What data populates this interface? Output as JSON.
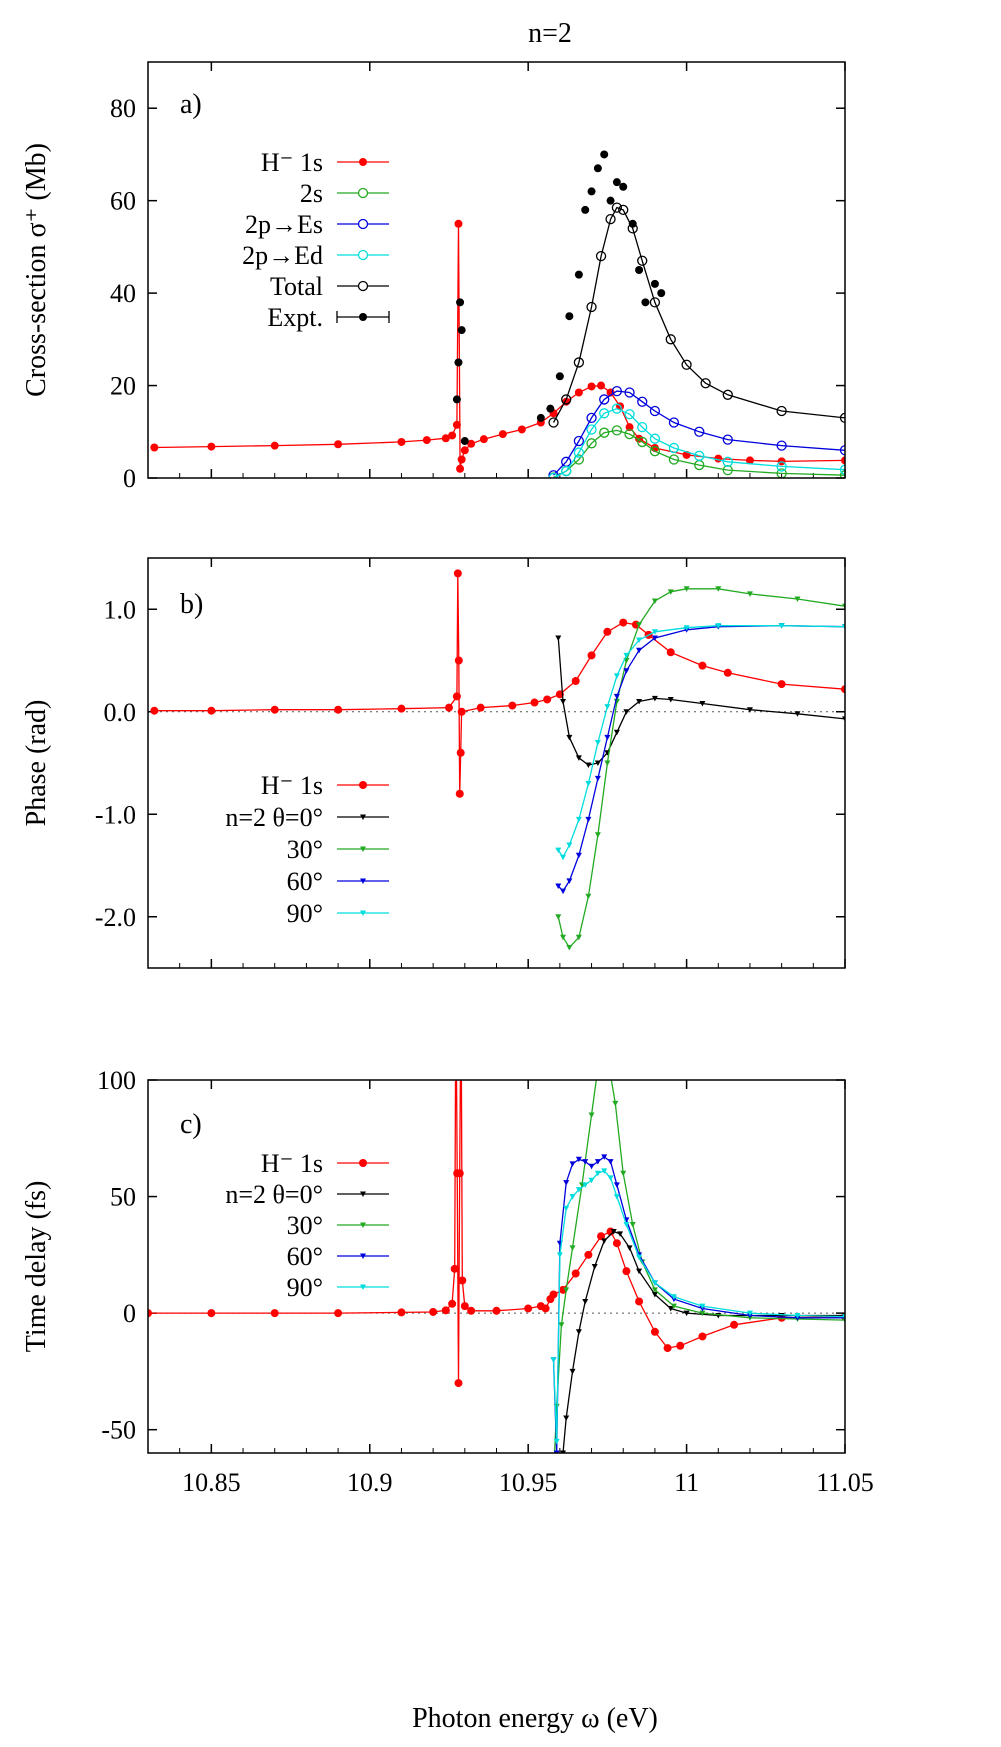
{
  "figure_title": "n=2",
  "x_axis": {
    "label": "Photon energy ω (eV)",
    "range": [
      10.83,
      11.05
    ],
    "ticks": [
      10.85,
      10.9,
      10.95,
      11,
      11.05
    ],
    "tick_labels": [
      "10.85",
      "10.9",
      "10.95",
      "11",
      "11.05"
    ]
  },
  "chart_data": [
    {
      "type": "line",
      "panel_label": "a)",
      "ylabel": "Cross-section σ⁺ (Mb)",
      "ylim": [
        0,
        90
      ],
      "yticks": [
        0,
        20,
        40,
        60,
        80
      ],
      "ytick_labels": [
        "0",
        "20",
        "40",
        "60",
        "80"
      ],
      "legend_position": "left",
      "series": [
        {
          "name": "H⁻ 1s",
          "color": "#ff0000",
          "marker": "filled-circle",
          "x": [
            10.832,
            10.85,
            10.87,
            10.89,
            10.91,
            10.918,
            10.924,
            10.926,
            10.9275,
            10.928,
            10.9285,
            10.929,
            10.93,
            10.932,
            10.936,
            10.942,
            10.948,
            10.954,
            10.958,
            10.962,
            10.966,
            10.97,
            10.973,
            10.976,
            10.979,
            10.982,
            10.985,
            10.99,
            11.0,
            11.01,
            11.02,
            11.03,
            11.05
          ],
          "y": [
            6.6,
            6.8,
            7.0,
            7.3,
            7.8,
            8.2,
            8.6,
            9.2,
            11.5,
            55.0,
            2.0,
            4.0,
            6.0,
            7.4,
            8.4,
            9.5,
            10.5,
            12.0,
            14.0,
            16.5,
            18.5,
            19.8,
            20.0,
            18.5,
            15.5,
            11.0,
            8.5,
            6.5,
            5.0,
            4.2,
            3.8,
            3.6,
            3.8
          ]
        },
        {
          "name": "2s",
          "color": "#22aa22",
          "marker": "open-circle",
          "x": [
            10.958,
            10.962,
            10.966,
            10.97,
            10.974,
            10.978,
            10.982,
            10.986,
            10.99,
            10.996,
            11.004,
            11.013,
            11.03,
            11.05
          ],
          "y": [
            0.1,
            1.5,
            4.0,
            7.5,
            9.8,
            10.3,
            9.5,
            7.8,
            5.8,
            4.0,
            2.8,
            1.7,
            1.0,
            0.6
          ]
        },
        {
          "name": "2p→Es",
          "color": "#0000dd",
          "marker": "open-circle",
          "x": [
            10.958,
            10.962,
            10.966,
            10.97,
            10.974,
            10.978,
            10.982,
            10.986,
            10.99,
            10.996,
            11.004,
            11.013,
            11.03,
            11.05
          ],
          "y": [
            0.6,
            3.5,
            8.0,
            13.0,
            17.0,
            18.8,
            18.5,
            16.5,
            14.5,
            12.0,
            10.0,
            8.3,
            7.0,
            6.0
          ]
        },
        {
          "name": "2p→Ed",
          "color": "#00dddd",
          "marker": "open-circle",
          "x": [
            10.958,
            10.962,
            10.966,
            10.97,
            10.974,
            10.978,
            10.982,
            10.986,
            10.99,
            10.996,
            11.004,
            11.013,
            11.03,
            11.05
          ],
          "y": [
            0.0,
            1.5,
            5.5,
            10.5,
            14.0,
            15.0,
            13.8,
            11.0,
            8.5,
            6.5,
            4.8,
            3.5,
            2.5,
            1.8
          ]
        },
        {
          "name": "Total",
          "color": "#000000",
          "marker": "open-circle",
          "x": [
            10.958,
            10.962,
            10.966,
            10.97,
            10.973,
            10.976,
            10.978,
            10.98,
            10.983,
            10.986,
            10.99,
            10.995,
            11.0,
            11.006,
            11.013,
            11.03,
            11.05
          ],
          "y": [
            12.0,
            17.0,
            25.0,
            37.0,
            48.0,
            56.0,
            58.5,
            58.0,
            54.0,
            47.0,
            38.0,
            30.0,
            24.5,
            20.5,
            18.0,
            14.5,
            13.0
          ]
        },
        {
          "name": "Expt.",
          "color": "#000000",
          "marker": "filled-circle-errorbar",
          "x": [
            10.9275,
            10.928,
            10.9285,
            10.929,
            10.93,
            10.954,
            10.957,
            10.96,
            10.963,
            10.966,
            10.968,
            10.97,
            10.972,
            10.974,
            10.976,
            10.978,
            10.98,
            10.983,
            10.985,
            10.987,
            10.99,
            10.992
          ],
          "y": [
            17.0,
            25.0,
            38.0,
            32.0,
            8.0,
            13.0,
            15.0,
            22.0,
            35.0,
            44.0,
            58.0,
            62.0,
            67.0,
            70.0,
            60.0,
            64.0,
            63.0,
            55.0,
            45.0,
            38.0,
            42.0,
            40.0
          ]
        }
      ]
    },
    {
      "type": "line",
      "panel_label": "b)",
      "ylabel": "Phase (rad)",
      "ylim": [
        -2.5,
        1.5
      ],
      "yticks": [
        -2.0,
        -1.0,
        0.0,
        1.0
      ],
      "ytick_labels": [
        "-2.0",
        "-1.0",
        "0.0",
        "1.0"
      ],
      "legend_position": "left",
      "series": [
        {
          "name": "H⁻ 1s",
          "color": "#ff0000",
          "marker": "filled-circle",
          "x": [
            10.832,
            10.85,
            10.87,
            10.89,
            10.91,
            10.925,
            10.9275,
            10.9278,
            10.9281,
            10.9284,
            10.9287,
            10.929,
            10.935,
            10.945,
            10.952,
            10.956,
            10.96,
            10.965,
            10.97,
            10.975,
            10.98,
            10.984,
            10.988,
            10.995,
            11.005,
            11.013,
            11.03,
            11.05
          ],
          "y": [
            0.01,
            0.01,
            0.02,
            0.02,
            0.03,
            0.04,
            0.15,
            1.35,
            0.5,
            -0.8,
            -0.4,
            0.0,
            0.04,
            0.06,
            0.09,
            0.12,
            0.17,
            0.3,
            0.55,
            0.78,
            0.87,
            0.85,
            0.75,
            0.58,
            0.45,
            0.38,
            0.27,
            0.22
          ]
        },
        {
          "name": "n=2 θ=0°",
          "color": "#000000",
          "marker": "down-triangle",
          "x": [
            10.9595,
            10.961,
            10.963,
            10.966,
            10.969,
            10.972,
            10.975,
            10.978,
            10.981,
            10.985,
            10.99,
            10.995,
            11.005,
            11.02,
            11.035,
            11.05
          ],
          "y": [
            0.72,
            0.1,
            -0.25,
            -0.45,
            -0.52,
            -0.5,
            -0.4,
            -0.2,
            0.0,
            0.1,
            0.13,
            0.12,
            0.08,
            0.02,
            -0.02,
            -0.07
          ]
        },
        {
          "name": "30°",
          "color": "#22aa22",
          "marker": "down-triangle",
          "x": [
            10.9595,
            10.961,
            10.963,
            10.966,
            10.969,
            10.972,
            10.975,
            10.978,
            10.981,
            10.985,
            10.99,
            10.995,
            11.0,
            11.01,
            11.02,
            11.035,
            11.05
          ],
          "y": [
            -2.0,
            -2.2,
            -2.3,
            -2.2,
            -1.8,
            -1.2,
            -0.5,
            0.1,
            0.5,
            0.85,
            1.08,
            1.17,
            1.2,
            1.2,
            1.15,
            1.1,
            1.03
          ]
        },
        {
          "name": "60°",
          "color": "#0000dd",
          "marker": "down-triangle",
          "x": [
            10.9595,
            10.961,
            10.963,
            10.966,
            10.969,
            10.972,
            10.975,
            10.978,
            10.981,
            10.985,
            10.99,
            11.0,
            11.01,
            11.03,
            11.05
          ],
          "y": [
            -1.7,
            -1.75,
            -1.65,
            -1.4,
            -1.05,
            -0.65,
            -0.25,
            0.15,
            0.4,
            0.6,
            0.72,
            0.8,
            0.83,
            0.84,
            0.83
          ]
        },
        {
          "name": "90°",
          "color": "#00dddd",
          "marker": "down-triangle",
          "x": [
            10.9595,
            10.961,
            10.963,
            10.966,
            10.969,
            10.972,
            10.975,
            10.978,
            10.981,
            10.985,
            10.99,
            11.0,
            11.01,
            11.03,
            11.05
          ],
          "y": [
            -1.35,
            -1.42,
            -1.3,
            -1.05,
            -0.7,
            -0.3,
            0.05,
            0.35,
            0.55,
            0.7,
            0.78,
            0.82,
            0.84,
            0.84,
            0.83
          ]
        }
      ]
    },
    {
      "type": "line",
      "panel_label": "c)",
      "ylabel": "Time delay (fs)",
      "ylim": [
        -60,
        100
      ],
      "yticks": [
        -50,
        0,
        50,
        100
      ],
      "ytick_labels": [
        "-50",
        "0",
        "50",
        "100"
      ],
      "legend_position": "left",
      "series": [
        {
          "name": "H⁻ 1s",
          "color": "#ff0000",
          "marker": "filled-circle",
          "x": [
            10.83,
            10.85,
            10.87,
            10.89,
            10.91,
            10.92,
            10.924,
            10.926,
            10.9268,
            10.9272,
            10.9276,
            10.928,
            10.9284,
            10.9288,
            10.9292,
            10.93,
            10.932,
            10.94,
            10.95,
            10.954,
            10.9555,
            10.957,
            10.958,
            10.961,
            10.965,
            10.969,
            10.973,
            10.976,
            10.978,
            10.981,
            10.985,
            10.99,
            10.994,
            10.998,
            11.005,
            11.015,
            11.03,
            11.05
          ],
          "y": [
            0.0,
            0.0,
            0.0,
            0.0,
            0.3,
            0.5,
            1.2,
            4.0,
            19.0,
            140.0,
            60.0,
            -30.0,
            60.0,
            140.0,
            14.0,
            3.0,
            1.0,
            1.0,
            2.0,
            3.0,
            2.0,
            6.0,
            8.0,
            10.0,
            17.0,
            25.0,
            33.0,
            35.0,
            30.0,
            18.0,
            5.0,
            -8.0,
            -15.0,
            -14.0,
            -10.0,
            -5.0,
            -2.0,
            -1.5
          ]
        },
        {
          "name": "n=2 θ=0°",
          "color": "#000000",
          "marker": "down-triangle",
          "x": [
            10.96,
            10.961,
            10.962,
            10.964,
            10.966,
            10.968,
            10.971,
            10.974,
            10.977,
            10.979,
            10.982,
            10.985,
            10.99,
            10.995,
            11.0,
            11.01,
            11.03,
            11.05
          ],
          "y": [
            -70.0,
            -60.0,
            -45.0,
            -25.0,
            -8.0,
            5.0,
            20.0,
            31.0,
            35.0,
            34.0,
            28.0,
            18.0,
            8.0,
            2.0,
            0.0,
            -1.0,
            -1.0,
            -1.0
          ]
        },
        {
          "name": "30°",
          "color": "#22aa22",
          "marker": "down-triangle",
          "x": [
            10.958,
            10.959,
            10.9605,
            10.962,
            10.964,
            10.967,
            10.97,
            10.9725,
            10.975,
            10.9775,
            10.98,
            10.983,
            10.986,
            10.99,
            10.996,
            11.005,
            11.02,
            11.035,
            11.05
          ],
          "y": [
            -70.0,
            -40.0,
            -5.0,
            10.0,
            28.0,
            55.0,
            85.0,
            110.0,
            110.0,
            90.0,
            60.0,
            38.0,
            22.0,
            10.0,
            3.0,
            0.0,
            -2.0,
            -2.5,
            -3.0
          ]
        },
        {
          "name": "60°",
          "color": "#0000dd",
          "marker": "down-triangle",
          "x": [
            10.958,
            10.959,
            10.96,
            10.962,
            10.964,
            10.966,
            10.968,
            10.97,
            10.972,
            10.974,
            10.976,
            10.978,
            10.981,
            10.985,
            10.99,
            10.996,
            11.005,
            11.02,
            11.035,
            11.05
          ],
          "y": [
            -20.0,
            -60.0,
            30.0,
            56.0,
            64.0,
            66.0,
            65.0,
            63.0,
            65.0,
            67.0,
            65.0,
            55.0,
            40.0,
            25.0,
            13.0,
            6.0,
            2.0,
            -1.0,
            -2.0,
            -2.0
          ]
        },
        {
          "name": "90°",
          "color": "#00dddd",
          "marker": "down-triangle",
          "x": [
            10.958,
            10.959,
            10.96,
            10.962,
            10.964,
            10.966,
            10.968,
            10.97,
            10.972,
            10.974,
            10.976,
            10.978,
            10.981,
            10.985,
            10.99,
            10.996,
            11.005,
            11.02,
            11.035,
            11.05
          ],
          "y": [
            -20.0,
            -55.0,
            25.0,
            45.0,
            50.0,
            53.0,
            55.0,
            57.0,
            60.0,
            61.0,
            58.0,
            50.0,
            38.0,
            24.0,
            13.0,
            7.0,
            3.0,
            0.0,
            -1.0,
            -1.5
          ]
        }
      ]
    }
  ]
}
